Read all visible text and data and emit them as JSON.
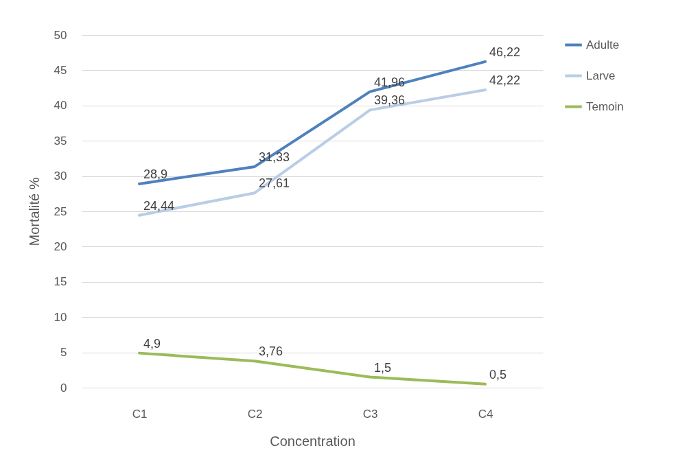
{
  "chart_data": {
    "type": "line",
    "xlabel": "Concentration",
    "ylabel": "Mortalité %",
    "categories": [
      "C1",
      "C2",
      "C3",
      "C4"
    ],
    "series": [
      {
        "name": "Adulte",
        "color": "#4f81bd",
        "values": [
          28.9,
          31.33,
          41.96,
          46.22
        ],
        "value_labels": [
          "28,9",
          "31,33",
          "41,96",
          "46,22"
        ]
      },
      {
        "name": "Larve",
        "color": "#b9cde5",
        "values": [
          24.44,
          27.61,
          39.36,
          42.22
        ],
        "value_labels": [
          "24,44",
          "27,61",
          "39,36",
          "42,22"
        ]
      },
      {
        "name": "Temoin",
        "color": "#9bbb59",
        "values": [
          4.9,
          3.76,
          1.5,
          0.5
        ],
        "value_labels": [
          "4,9",
          "3,76",
          "1,5",
          "0,5"
        ]
      }
    ],
    "ylim": [
      0,
      50
    ],
    "yticks": [
      0,
      5,
      10,
      15,
      20,
      25,
      30,
      35,
      40,
      45,
      50
    ],
    "grid": "y",
    "legend": "right",
    "marker": "none",
    "line_style": "solid"
  }
}
